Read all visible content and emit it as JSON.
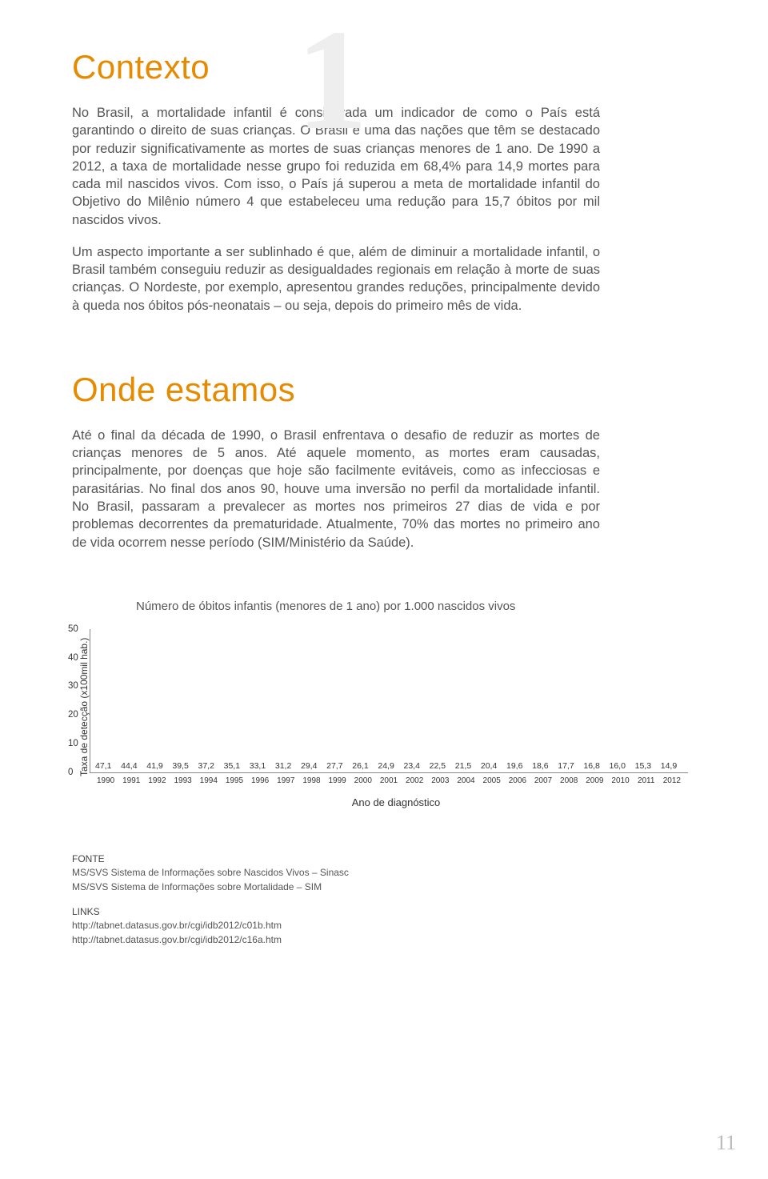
{
  "chapter_number": "1",
  "section1": {
    "title": "Contexto",
    "para1": "No Brasil, a mortalidade infantil é considerada um indicador de como o País está garantindo o direito de suas crianças. O Brasil é uma das nações que têm se destacado por reduzir significativamente as mortes de suas crianças menores de 1 ano. De 1990 a 2012, a taxa de mortalidade nesse grupo foi reduzida em 68,4% para 14,9 mortes para cada mil nascidos vivos. Com isso, o País já superou a meta de mortalidade infantil do Objetivo do Milênio número 4 que estabeleceu uma redução para 15,7 óbitos por mil nascidos vivos.",
    "para2": "Um aspecto importante a ser sublinhado é que, além de diminuir a mortalidade infantil, o Brasil também conseguiu reduzir as desigualdades regionais em relação à morte de suas crianças. O Nordeste, por exemplo, apresentou grandes reduções, principalmente devido à queda nos óbitos pós-neonatais – ou seja, depois do primeiro mês de vida."
  },
  "section2": {
    "title": "Onde estamos",
    "para1": "Até o final da década de 1990, o Brasil enfrentava o desafio de reduzir as mortes de crianças menores de 5 anos. Até aquele momento, as mortes eram causadas, principalmente, por doenças que hoje são facilmente evitáveis, como as infecciosas e parasitárias. No final dos anos 90, houve uma inversão no perfil da mortalidade infantil. No Brasil, passaram a prevalecer as mortes nos primeiros 27 dias de vida e por problemas decorrentes da prematuridade. Atualmente, 70% das mortes no primeiro ano de vida ocorrem nesse período (SIM/Ministério da Saúde)."
  },
  "chart": {
    "type": "bar",
    "title": "Número de óbitos infantis (menores de 1 ano) por 1.000 nascidos vivos",
    "y_axis_title": "Taxa de detecção (x100mil hab.)",
    "x_axis_title": "Ano de diagnóstico",
    "ylim_max": 50,
    "yticks": [
      "0",
      "10",
      "20",
      "30",
      "40",
      "50"
    ],
    "bar_color": "#2bace2",
    "axis_color": "#888888",
    "text_color": "#333333",
    "background": "#ffffff",
    "categories": [
      "1990",
      "1991",
      "1992",
      "1993",
      "1994",
      "1995",
      "1996",
      "1997",
      "1998",
      "1999",
      "2000",
      "2001",
      "2002",
      "2003",
      "2004",
      "2005",
      "2006",
      "2007",
      "2008",
      "2009",
      "2010",
      "2011",
      "2012"
    ],
    "values_display": [
      "47,1",
      "44,4",
      "41,9",
      "39,5",
      "37,2",
      "35,1",
      "33,1",
      "31,2",
      "29,4",
      "27,7",
      "26,1",
      "24,9",
      "23,4",
      "22,5",
      "21,5",
      "20,4",
      "19,6",
      "18,6",
      "17,7",
      "16,8",
      "16,0",
      "15,3",
      "14,9"
    ],
    "values": [
      47.1,
      44.4,
      41.9,
      39.5,
      37.2,
      35.1,
      33.1,
      31.2,
      29.4,
      27.7,
      26.1,
      24.9,
      23.4,
      22.5,
      21.5,
      20.4,
      19.6,
      18.6,
      17.7,
      16.8,
      16.0,
      15.3,
      14.9
    ]
  },
  "footnotes": {
    "fonte_head": "FONTE",
    "fonte1": "MS/SVS Sistema de Informações sobre Nascidos Vivos – Sinasc",
    "fonte2": "MS/SVS Sistema de Informações sobre Mortalidade – SIM",
    "links_head": "LINKS",
    "link1": "http://tabnet.datasus.gov.br/cgi/idb2012/c01b.htm",
    "link2": "http://tabnet.datasus.gov.br/cgi/idb2012/c16a.htm"
  },
  "page_number": "11"
}
